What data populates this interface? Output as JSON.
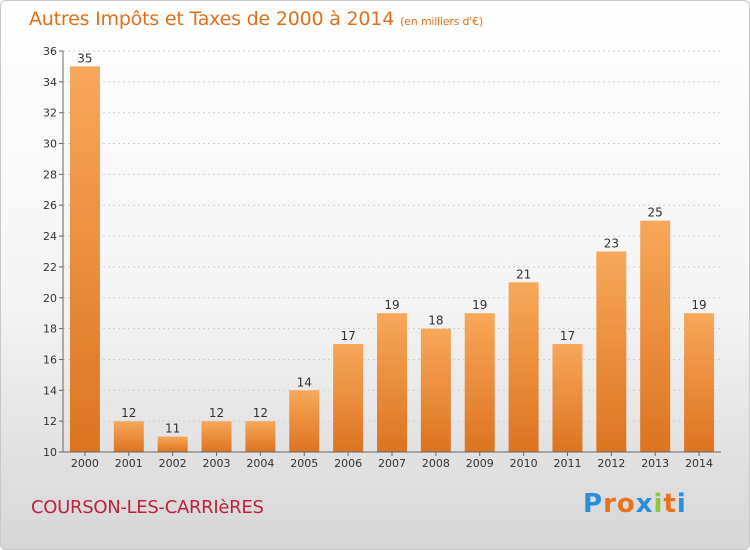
{
  "title": "Autres Impôts et Taxes de 2000 à 2014",
  "unit": "(en milliers d'€)",
  "commune": "COURSON-LES-CARRIèRES",
  "logo": {
    "text": "Proxiti",
    "colors": [
      "#2a8fd6",
      "#e8731a",
      "#e8731a",
      "#2a8fd6",
      "#8dc63f",
      "#e8731a",
      "#2a8fd6"
    ]
  },
  "colors": {
    "bar_light": "#f7a85a",
    "bar_dark": "#dd7420",
    "title": "#e0701a",
    "commune": "#c0203e",
    "grid": "#d0d0d0"
  },
  "chart_data": {
    "type": "bar",
    "title": "Autres Impôts et Taxes de 2000 à 2014",
    "categories": [
      "2000",
      "2001",
      "2002",
      "2003",
      "2004",
      "2005",
      "2006",
      "2007",
      "2008",
      "2009",
      "2010",
      "2011",
      "2012",
      "2013",
      "2014"
    ],
    "values": [
      35,
      12,
      11,
      12,
      12,
      14,
      17,
      19,
      18,
      19,
      21,
      17,
      23,
      25,
      19
    ],
    "ylim": [
      10,
      36
    ],
    "yticks": [
      10,
      12,
      14,
      16,
      18,
      20,
      22,
      24,
      26,
      28,
      30,
      32,
      34,
      36
    ],
    "grid": true,
    "data_labels": true
  }
}
